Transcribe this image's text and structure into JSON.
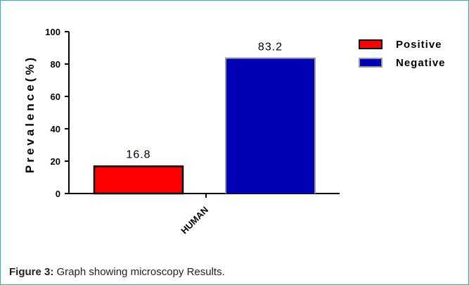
{
  "caption": {
    "label": "Figure 3:",
    "text": " Graph showing microscopy Results."
  },
  "colors": {
    "positive": "#ff0000",
    "negative": "#0000b4",
    "border": "#2bb6a5"
  },
  "chart_data": {
    "type": "bar",
    "title": "",
    "xlabel": "",
    "ylabel": "Prevalence(%)",
    "ylim": [
      0,
      100
    ],
    "yticks": [
      0,
      20,
      40,
      60,
      80,
      100
    ],
    "categories": [
      "HUMAN"
    ],
    "series": [
      {
        "name": "Positive",
        "values": [
          16.8
        ],
        "color": "#ff0000"
      },
      {
        "name": "Negative",
        "values": [
          83.2
        ],
        "color": "#0000b4"
      }
    ],
    "data_labels": [
      "16.8",
      "83.2"
    ],
    "legend_position": "top-right",
    "grid": false
  }
}
